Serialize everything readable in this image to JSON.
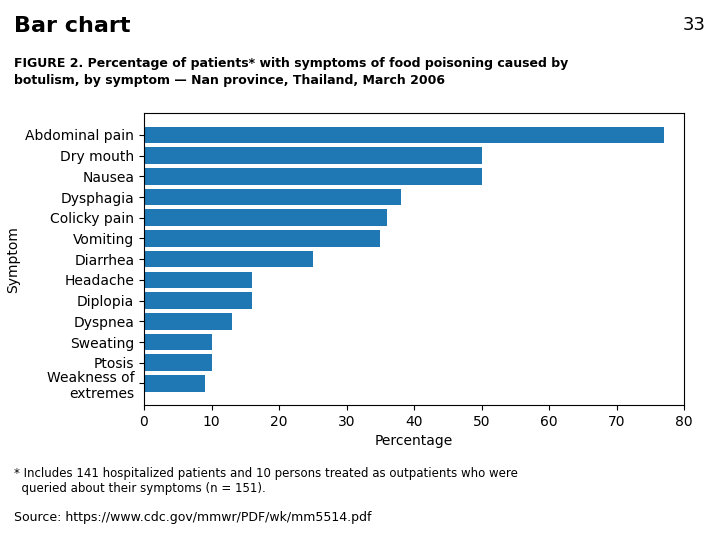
{
  "chart_data": {
    "type": "bar",
    "orientation": "horizontal",
    "title": "Bar chart",
    "subtitle": "FIGURE 2. Percentage of patients* with symptoms of food poisoning caused by\nbotulism, by symptom — Nan province, Thailand, March 2006",
    "categories": [
      "Abdominal pain",
      "Dry mouth",
      "Nausea",
      "Dysphagia",
      "Colicky pain",
      "Vomiting",
      "Diarrhea",
      "Headache",
      "Diplopia",
      "Dyspnea",
      "Sweating",
      "Ptosis",
      "Weakness of\nextremes"
    ],
    "values": [
      77,
      50,
      50,
      38,
      36,
      35,
      25,
      16,
      16,
      13,
      10,
      10,
      9
    ],
    "x_label": "Percentage",
    "y_label": "Symptom",
    "xlim": [
      0,
      80
    ],
    "xticks": [
      0,
      10,
      20,
      30,
      40,
      50,
      60,
      70,
      80
    ],
    "grid": false,
    "annotations": [
      "33",
      "* Includes 141 hospitalized patients and 10 persons treated as outpatients who were\n  queried about their symptoms (n = 151).",
      "Source: https://www.cdc.gov/mmwr/PDF/wk/mm5514.pdf"
    ]
  }
}
